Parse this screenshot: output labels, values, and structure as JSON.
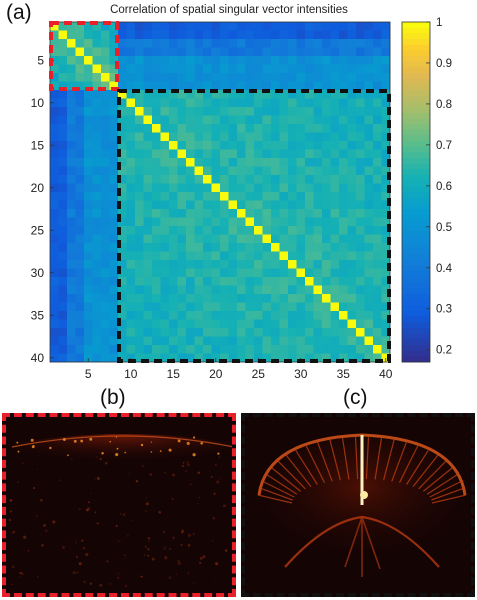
{
  "figure": {
    "label_a": "(a)",
    "label_b": "(b)",
    "label_c": "(c)"
  },
  "chart_data": {
    "type": "heatmap",
    "title": "Correlation of spatial singular vector intensities",
    "xlabel": "",
    "ylabel": "",
    "x_ticks": [
      5,
      10,
      15,
      20,
      25,
      30,
      35,
      40
    ],
    "y_ticks": [
      5,
      10,
      15,
      20,
      25,
      30,
      35,
      40
    ],
    "xlim": [
      0.5,
      40.5
    ],
    "ylim": [
      0.5,
      40.5
    ],
    "y_direction": "top-to-bottom",
    "n": 40,
    "colorbar": {
      "min": 0.17,
      "max": 1,
      "ticks": [
        1,
        0.9,
        0.8,
        0.7,
        0.6,
        0.5,
        0.4,
        0.3,
        0.2
      ],
      "colormap": "parula"
    },
    "structure": {
      "diagonal": 1,
      "block1": {
        "range": [
          1,
          8
        ],
        "typical": 0.72
      },
      "block2": {
        "range": [
          9,
          40
        ],
        "typical": 0.65
      },
      "cross_block": {
        "rows_1_3": 0.25,
        "rows_4_8": 0.45
      },
      "col_1_2_with_block2": 0.3,
      "col_3_4_with_block2": 0.4,
      "col_5_8_with_block2": 0.5
    },
    "highlight_boxes": [
      {
        "name": "block-1",
        "range": [
          1,
          8
        ],
        "color": "#e8202a"
      },
      {
        "name": "block-2",
        "range": [
          9,
          40
        ],
        "color": "#111111"
      }
    ]
  },
  "panels": {
    "b": {
      "border_color": "#e8202a"
    },
    "c": {
      "border_color": "#111111"
    }
  }
}
